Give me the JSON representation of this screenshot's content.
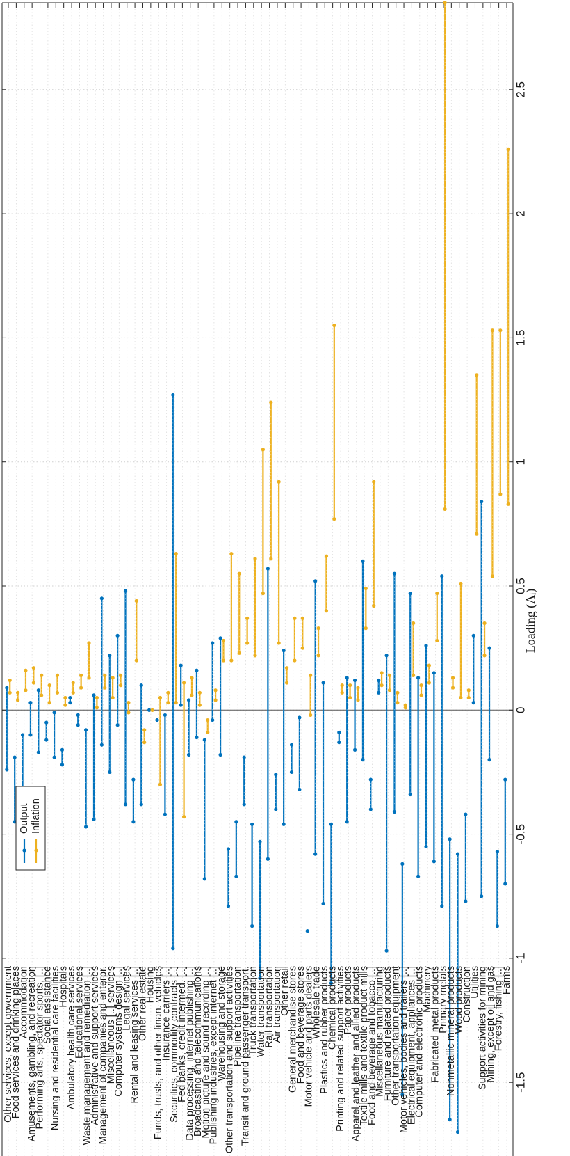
{
  "chart_data": {
    "type": "dumbbell",
    "orientation": "rotated (categories along vertical page axis, values along horizontal page axis)",
    "ylabel": "Loading (Λ_i)",
    "ylim": [
      -1.85,
      2.85
    ],
    "yticks": [
      -1.5,
      -1,
      -0.5,
      0,
      0.5,
      1,
      1.5,
      2,
      2.5
    ],
    "ytick_labels": [
      "-1.5",
      "-1",
      "-0.5",
      "0",
      "0.5",
      "1",
      "1.5",
      "2",
      "2.5"
    ],
    "grid": true,
    "zero_line": true,
    "legend_placement": "bottom-left",
    "colors": {
      "Output": "#0072BD",
      "Inflation": "#EDB120"
    },
    "categories": [
      "Other services, except government",
      "Food services and drinking places",
      "Accommodation",
      "Amusements, gambling, and recreation",
      "Performing arts, spectator sports, [..]",
      "Social assistance",
      "Nursing and residential care facilities",
      "Hospitals",
      "Ambulatory health care services",
      "Educational services",
      "Waste management and remediation [..]",
      "Administrative and support services",
      "Management of companies and enterpr.",
      "Miscellaneous [..] services",
      "Computer systems design [..]",
      "Legal services",
      "Rental and leasing services [..]",
      "Other real estate",
      "Housing",
      "Funds, trusts, and other finan. vehicles",
      "Insurance carriers [..]",
      "Securities, commodity contracts [..]",
      "Fed banks, credit intermed. [..]",
      "Data processing, internet publishing [..]",
      "Broadcasting and telecommunications",
      "Motion picture and sound recording [..]",
      "Publishing industries, except internet [..]",
      "Warehousing and storage",
      "Other transportation and support activities",
      "Pipeline transportation",
      "Transit and ground passenger transport.",
      "Truck transportation",
      "Water transportation",
      "Rail transportation",
      "Air transportation",
      "Other retail",
      "General merchandise stores",
      "Food and beverage stores",
      "Motor vehicle and parts dealers",
      "Wholesale trade",
      "Plastics and rubber products",
      "Chemical products",
      "Printing and related support activities",
      "Paper products",
      "Apparel and leather and allied products",
      "Textile mills and textile product mills",
      "Food and beverage and tobacco [..]",
      "Miscellaneous manufacturing",
      "Furniture and related products",
      "Other transportation equipment",
      "Motor vehicles, bodies and trailers [..]",
      "Electrical equipment, appliances [..]",
      "Computer and electronic products",
      "Machinery",
      "Fabricated metal products",
      "Primary metals",
      "Nonmetallic mineral products",
      "Wood products",
      "Construction",
      "Utilities",
      "Support activities for mining",
      "Mining, except oil and gas",
      "Forestry, fishing [..]",
      "Farms"
    ],
    "series": [
      {
        "name": "Output",
        "ranges": [
          [
            -0.24,
            0.09
          ],
          [
            -0.45,
            -0.19
          ],
          [
            -0.39,
            -0.1
          ],
          [
            -0.1,
            0.03
          ],
          [
            -0.17,
            0.08
          ],
          [
            -0.12,
            -0.05
          ],
          [
            -0.19,
            -0.01
          ],
          [
            -0.22,
            -0.16
          ],
          [
            0.03,
            0.05
          ],
          [
            -0.06,
            -0.02
          ],
          [
            -0.47,
            -0.08
          ],
          [
            -0.44,
            0.06
          ],
          [
            -0.14,
            0.45
          ],
          [
            -0.25,
            0.22
          ],
          [
            -0.06,
            0.3
          ],
          [
            -0.38,
            0.48
          ],
          [
            -0.45,
            -0.28
          ],
          [
            -0.38,
            0.1
          ],
          [
            0.0,
            0.0
          ],
          [
            -0.04,
            -0.04
          ],
          [
            -0.42,
            -0.02
          ],
          [
            -0.96,
            1.27
          ],
          [
            0.02,
            0.18
          ],
          [
            -0.18,
            0.04
          ],
          [
            -0.11,
            0.16
          ],
          [
            -0.68,
            -0.12
          ],
          [
            -0.04,
            0.27
          ],
          [
            -0.18,
            0.29
          ],
          [
            -0.79,
            -0.56
          ],
          [
            -0.67,
            -0.45
          ],
          [
            -0.38,
            -0.19
          ],
          [
            -0.87,
            -0.46
          ],
          [
            -1.08,
            -0.53
          ],
          [
            -0.6,
            0.57
          ],
          [
            -0.4,
            -0.26
          ],
          [
            -0.46,
            0.24
          ],
          [
            -0.25,
            -0.14
          ],
          [
            -0.32,
            -0.03
          ],
          [
            -0.89,
            -0.89
          ],
          [
            -0.58,
            0.52
          ],
          [
            -0.78,
            0.11
          ],
          [
            -1.1,
            -0.46
          ],
          [
            -0.13,
            -0.09
          ],
          [
            -0.45,
            0.13
          ],
          [
            -0.16,
            0.12
          ],
          [
            -0.2,
            0.6
          ],
          [
            -0.4,
            -0.28
          ],
          [
            0.07,
            0.12
          ],
          [
            -0.97,
            0.22
          ],
          [
            -0.41,
            0.55
          ],
          [
            -1.55,
            -0.62
          ],
          [
            -0.34,
            0.47
          ],
          [
            -0.67,
            0.13
          ],
          [
            -0.55,
            0.26
          ],
          [
            -0.61,
            0.15
          ],
          [
            -0.79,
            0.54
          ],
          [
            -1.65,
            -0.52
          ],
          [
            -1.7,
            -0.58
          ],
          [
            -0.77,
            -0.42
          ],
          [
            0.03,
            0.3
          ],
          [
            -0.75,
            0.84
          ],
          [
            -0.2,
            0.25
          ],
          [
            -0.87,
            -0.57
          ],
          [
            -0.7,
            -0.28
          ]
        ]
      },
      {
        "name": "Inflation",
        "ranges": [
          [
            0.07,
            0.12
          ],
          [
            0.04,
            0.07
          ],
          [
            0.08,
            0.16
          ],
          [
            0.11,
            0.17
          ],
          [
            0.06,
            0.14
          ],
          [
            0.03,
            0.1
          ],
          [
            0.07,
            0.14
          ],
          [
            0.02,
            0.05
          ],
          [
            0.07,
            0.11
          ],
          [
            0.09,
            0.14
          ],
          [
            0.13,
            0.27
          ],
          [
            0.01,
            0.05
          ],
          [
            0.09,
            0.14
          ],
          [
            0.05,
            0.13
          ],
          [
            0.1,
            0.14
          ],
          [
            -0.01,
            0.03
          ],
          [
            0.2,
            0.44
          ],
          [
            -0.13,
            -0.08
          ],
          [
            0.0,
            0.0
          ],
          [
            -0.3,
            0.05
          ],
          [
            0.03,
            0.07
          ],
          [
            0.03,
            0.63
          ],
          [
            -0.43,
            0.11
          ],
          [
            0.06,
            0.13
          ],
          [
            0.02,
            0.07
          ],
          [
            -0.09,
            -0.04
          ],
          [
            0.04,
            0.08
          ],
          [
            0.2,
            0.28
          ],
          [
            0.2,
            0.63
          ],
          [
            0.23,
            0.55
          ],
          [
            0.27,
            0.37
          ],
          [
            0.22,
            0.61
          ],
          [
            0.47,
            1.05
          ],
          [
            0.61,
            1.24
          ],
          [
            0.27,
            0.92
          ],
          [
            0.11,
            0.17
          ],
          [
            0.2,
            0.37
          ],
          [
            0.25,
            0.37
          ],
          [
            -0.02,
            0.14
          ],
          [
            0.22,
            0.33
          ],
          [
            0.4,
            0.62
          ],
          [
            0.77,
            1.55
          ],
          [
            0.07,
            0.1
          ],
          [
            0.05,
            0.1
          ],
          [
            0.04,
            0.09
          ],
          [
            0.33,
            0.49
          ],
          [
            0.42,
            0.92
          ],
          [
            0.1,
            0.15
          ],
          [
            0.08,
            0.14
          ],
          [
            0.03,
            0.07
          ],
          [
            0.01,
            0.02
          ],
          [
            0.14,
            0.35
          ],
          [
            0.06,
            0.1
          ],
          [
            0.11,
            0.18
          ],
          [
            0.28,
            0.47
          ],
          [
            0.81,
            2.85
          ],
          [
            0.09,
            0.13
          ],
          [
            0.05,
            0.51
          ],
          [
            0.05,
            0.08
          ],
          [
            0.71,
            1.35
          ],
          [
            0.22,
            0.35
          ],
          [
            0.54,
            1.53
          ],
          [
            0.87,
            1.53
          ],
          [
            0.83,
            2.26
          ]
        ]
      }
    ]
  }
}
